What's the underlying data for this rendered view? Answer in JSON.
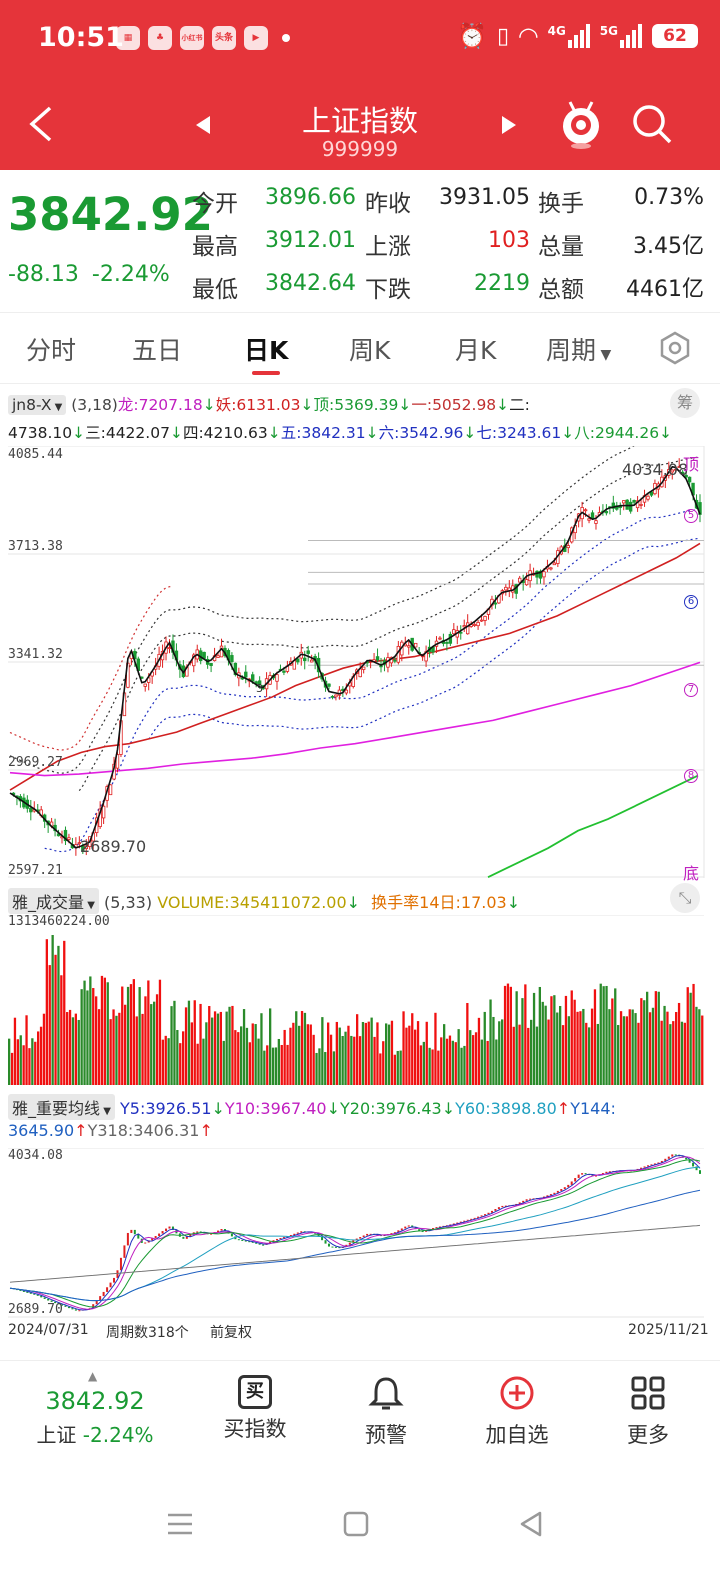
{
  "status_bar": {
    "time": "10:51",
    "apps": [
      "小红书",
      "头条"
    ],
    "network": [
      "4G",
      "5G"
    ],
    "battery": "62"
  },
  "header": {
    "title": "上证指数",
    "code": "999999"
  },
  "quote": {
    "price": "3842.92",
    "change": "-88.13",
    "change_pct": "-2.24%",
    "fields": [
      {
        "label": "今开",
        "value": "3896.66",
        "color": "green"
      },
      {
        "label": "昨收",
        "value": "3931.05",
        "color": "dark"
      },
      {
        "label": "换手",
        "value": "0.73%",
        "color": "dark"
      },
      {
        "label": "最高",
        "value": "3912.01",
        "color": "green"
      },
      {
        "label": "上涨",
        "value": "103",
        "color": "red"
      },
      {
        "label": "总量",
        "value": "3.45亿",
        "color": "dark"
      },
      {
        "label": "最低",
        "value": "3842.64",
        "color": "green"
      },
      {
        "label": "下跌",
        "value": "2219",
        "color": "green"
      },
      {
        "label": "总额",
        "value": "4461亿",
        "color": "dark"
      }
    ]
  },
  "tabs": [
    "分时",
    "五日",
    "日K",
    "周K",
    "月K",
    "周期"
  ],
  "main_chart": {
    "indicator": "jn8-X",
    "params": "(3,18)",
    "levels_line1": [
      {
        "text": "龙:7207.18",
        "color": "#c020c0",
        "arrow": "↓"
      },
      {
        "text": "妖:6131.03",
        "color": "#d02020",
        "arrow": "↓"
      },
      {
        "text": "顶:5369.39",
        "color": "#1a9a33",
        "arrow": "↓"
      },
      {
        "text": "一:5052.98",
        "color": "#c03030",
        "arrow": "↓"
      },
      {
        "text": "二:",
        "color": "#222",
        "arrow": ""
      }
    ],
    "levels_line2": [
      {
        "text": "4738.10",
        "color": "#222",
        "arrow": "↓"
      },
      {
        "text": "三:4422.07",
        "color": "#222",
        "arrow": "↓"
      },
      {
        "text": "四:4210.63",
        "color": "#222",
        "arrow": "↓"
      },
      {
        "text": "五:3842.31",
        "color": "#2030c0",
        "arrow": "↓"
      },
      {
        "text": "六:3542.96",
        "color": "#2030c0",
        "arrow": "↓"
      },
      {
        "text": "七:3243.61",
        "color": "#2030c0",
        "arrow": "↓"
      },
      {
        "text": "八:2944.26",
        "color": "#1a9a33",
        "arrow": "↓"
      }
    ],
    "settings_label": "筹",
    "y_labels": [
      "4085.44",
      "3713.38",
      "3341.32",
      "2969.27",
      "2597.21"
    ],
    "high_label": "4034.08",
    "low_label": "2689.70",
    "mid_label": "3",
    "top_tag": "顶",
    "bottom_tag": "底",
    "level_markers": [
      "5",
      "6",
      "7",
      "8"
    ]
  },
  "volume_chart": {
    "indicator": "雅_成交量",
    "params": "(5,33)",
    "volume_text": "VOLUME:345411072.00",
    "turnover_text": "换手率14日:17.03",
    "max_label": "1313460224.00"
  },
  "ma_chart": {
    "indicator": "雅_重要均线",
    "items": [
      {
        "text": "Y5:3926.51",
        "color": "#2030c0",
        "arrow": "↓"
      },
      {
        "text": "Y10:3967.40",
        "color": "#c020c0",
        "arrow": "↓"
      },
      {
        "text": "Y20:3976.43",
        "color": "#1a9a33",
        "arrow": "↓"
      },
      {
        "text": "Y60:3898.80",
        "color": "#20a0c0",
        "arrow": "↑"
      },
      {
        "text": "Y144:",
        "color": "#2060c0",
        "arrow": ""
      }
    ],
    "items_line2": [
      {
        "text": "3645.90",
        "color": "#2060c0",
        "arrow": "↑"
      },
      {
        "text": "Y318:3406.31",
        "color": "#666",
        "arrow": "↑"
      }
    ],
    "top_label": "4034.08",
    "bottom_label": "2689.70"
  },
  "footer_axis": {
    "start_date": "2024/07/31",
    "periods": "周期数318个",
    "adjust": "前复权",
    "end_date": "2025/11/21"
  },
  "bottom_nav": {
    "price": "3842.92",
    "name": "上证",
    "change_pct": "-2.24%",
    "buttons": [
      {
        "label": "买指数",
        "icon_text": "买"
      },
      {
        "label": "预警"
      },
      {
        "label": "加自选"
      },
      {
        "label": "更多"
      }
    ]
  },
  "colors": {
    "brand": "#e5343a",
    "up": "#e02020",
    "down": "#1a9a33"
  },
  "chart_data": {
    "type": "candlestick",
    "title": "",
    "xlabel": "",
    "ylabel": "",
    "x_range": [
      "2024/07/31",
      "2025/11/21"
    ],
    "ylim": [
      2597.21,
      4085.44
    ],
    "period_count": 318,
    "series": [
      {
        "values": [
          2890,
          2860,
          2830,
          2780,
          2740,
          2700,
          2720,
          2850,
          3000,
          3400,
          3260,
          3330,
          3410,
          3300,
          3370,
          3340,
          3390,
          3300,
          3280,
          3250,
          3300,
          3330,
          3370,
          3350,
          3240,
          3230,
          3300,
          3350,
          3330,
          3360,
          3420,
          3360,
          3400,
          3420,
          3450,
          3480,
          3520,
          3580,
          3590,
          3640,
          3650,
          3690,
          3750,
          3860,
          3830,
          3870,
          3880,
          3880,
          3920,
          3950,
          4020,
          3970,
          3850
        ]
      },
      {
        "values": [
          2900,
          2950,
          3000,
          3030,
          3050,
          3060,
          3080,
          3100,
          3130,
          3160,
          3190,
          3220,
          3260,
          3290,
          3320,
          3340,
          3350,
          3360,
          3380,
          3400,
          3420,
          3440,
          3470,
          3500,
          3540,
          3580,
          3620,
          3660,
          3700,
          3750
        ]
      },
      {
        "values": [
          2960,
          2950,
          2955,
          2965,
          2975,
          2990,
          3000,
          3010,
          3025,
          3045,
          3060,
          3080,
          3100,
          3120,
          3140,
          3170,
          3200,
          3230,
          3260,
          3300,
          3340
        ]
      },
      {
        "values": [
          2600,
          2650,
          2700,
          2760,
          2800,
          2850,
          2900,
          2950
        ]
      }
    ]
  }
}
